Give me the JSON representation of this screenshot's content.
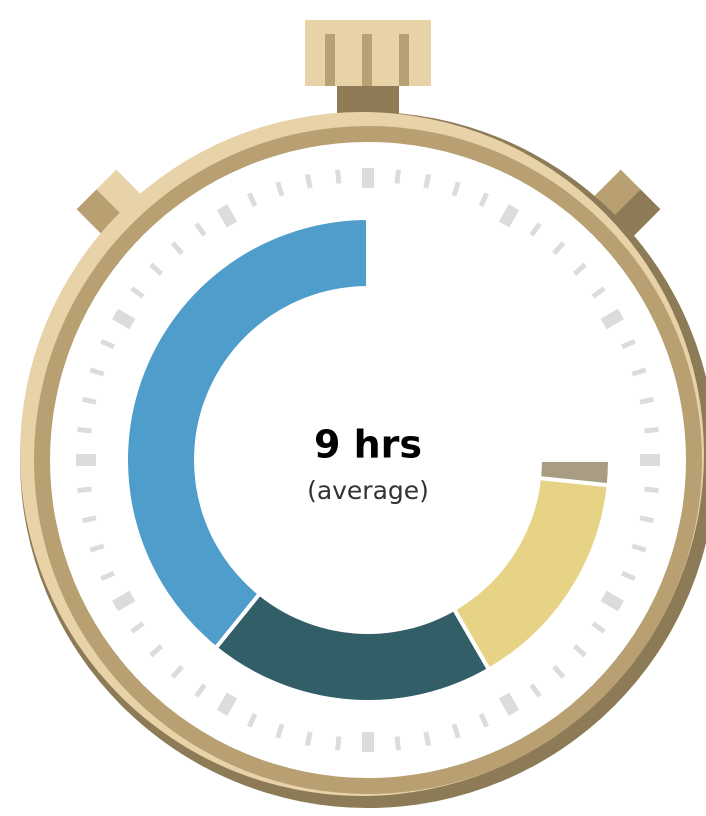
{
  "chart_data": {
    "type": "donut",
    "title": "9 hrs",
    "subtitle": "(average)",
    "ylim": [
      0,
      12
    ],
    "values": [
      4.7,
      2.3,
      1.8,
      0.2
    ],
    "colors": [
      "#4e9dcb",
      "#325e68",
      "#e7d385",
      "#a89c82"
    ]
  }
}
